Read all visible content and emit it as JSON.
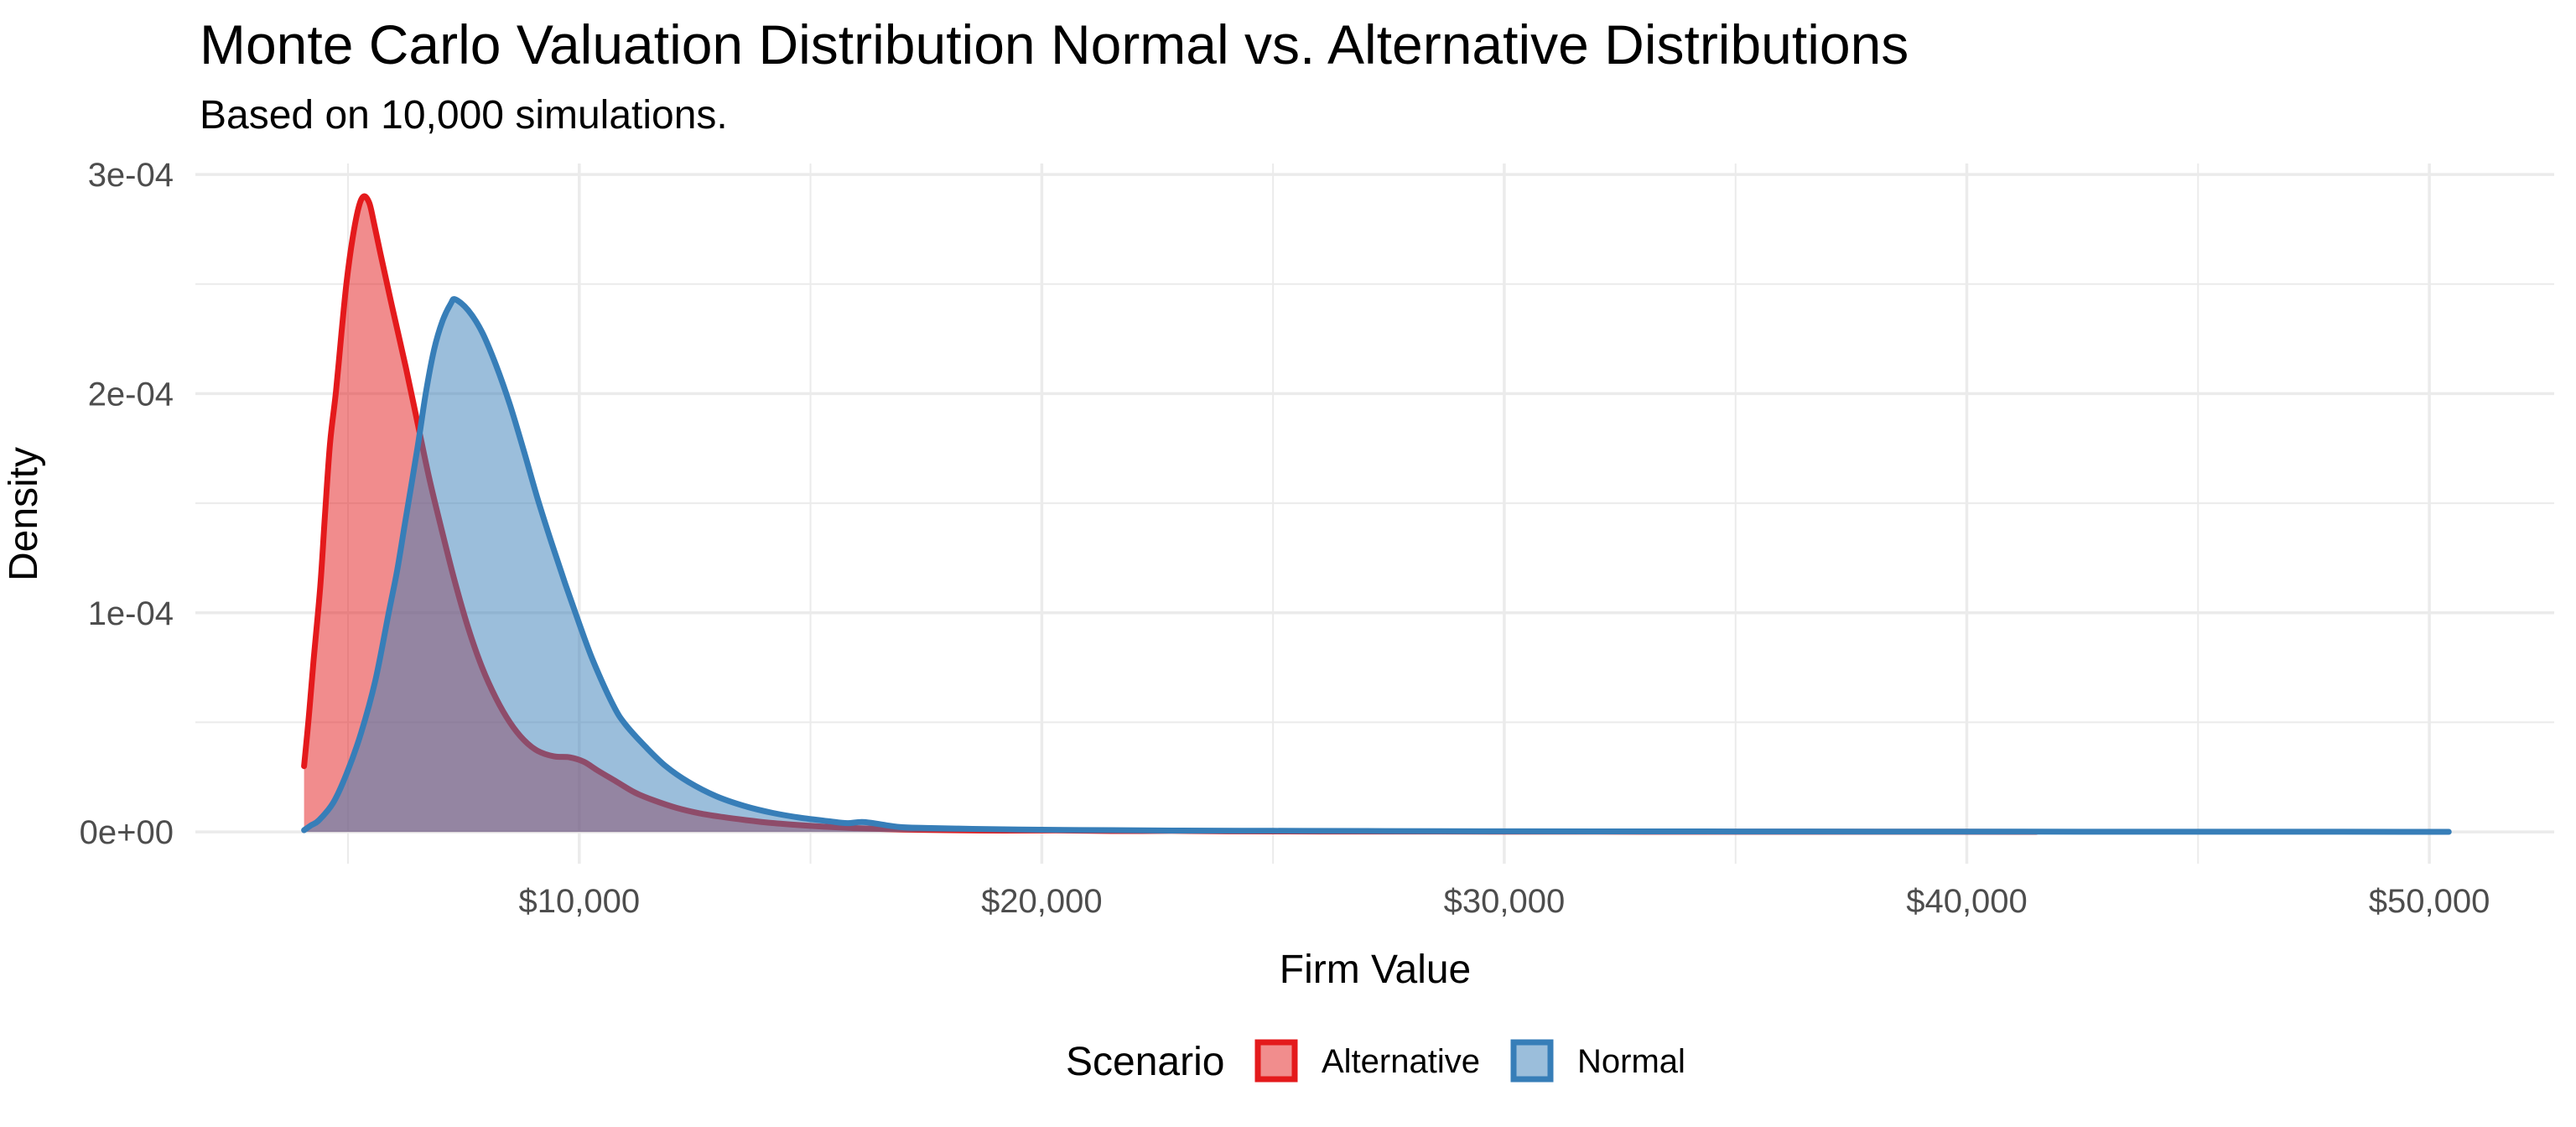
{
  "chart_data": {
    "type": "area",
    "subtype": "overlaid-density",
    "title": "Monte Carlo Valuation Distribution Normal vs. Alternative Distributions",
    "subtitle": "Based on 10,000 simulations.",
    "xlabel": "Firm Value",
    "ylabel": "Density",
    "x_domain": [
      1700,
      52700
    ],
    "y_domain": [
      -1.45e-05,
      0.000305
    ],
    "grid": true,
    "legend_position": "bottom",
    "x_ticks": [
      {
        "value": 10000,
        "label": "$10,000"
      },
      {
        "value": 20000,
        "label": "$20,000"
      },
      {
        "value": 30000,
        "label": "$30,000"
      },
      {
        "value": 40000,
        "label": "$40,000"
      },
      {
        "value": 50000,
        "label": "$50,000"
      }
    ],
    "x_minor_ticks": [
      5000,
      15000,
      25000,
      35000,
      45000
    ],
    "y_ticks": [
      {
        "value": 0.0,
        "label": "0e+00"
      },
      {
        "value": 0.0001,
        "label": "1e-04"
      },
      {
        "value": 0.0002,
        "label": "2e-04"
      },
      {
        "value": 0.0003,
        "label": "3e-04"
      }
    ],
    "y_minor_ticks": [
      5e-05,
      0.00015,
      0.00025
    ],
    "series": [
      {
        "name": "Alternative",
        "stroke": "#E41A1C",
        "fill": "#E41A1C",
        "fill_opacity": 0.5,
        "peak": {
          "value": 5340,
          "density": 0.00029
        },
        "points": [
          [
            4050,
            3e-05
          ],
          [
            4150,
            5.2e-05
          ],
          [
            4250,
            7.7e-05
          ],
          [
            4400,
            0.000112
          ],
          [
            4500,
            0.000144
          ],
          [
            4610,
            0.000177
          ],
          [
            4740,
            0.000201
          ],
          [
            4860,
            0.000228
          ],
          [
            4970,
            0.000251
          ],
          [
            5100,
            0.000271
          ],
          [
            5230,
            0.000285
          ],
          [
            5340,
            0.00029
          ],
          [
            5460,
            0.000287
          ],
          [
            5560,
            0.000278
          ],
          [
            5700,
            0.000264
          ],
          [
            5950,
            0.00024
          ],
          [
            6250,
            0.000212
          ],
          [
            6500,
            0.000187
          ],
          [
            6750,
            0.000162
          ],
          [
            7000,
            0.00014
          ],
          [
            7300,
            0.000115
          ],
          [
            7600,
            9.3e-05
          ],
          [
            7900,
            7.5e-05
          ],
          [
            8200,
            6.1e-05
          ],
          [
            8500,
            5e-05
          ],
          [
            8800,
            4.2e-05
          ],
          [
            9100,
            3.7e-05
          ],
          [
            9450,
            3.45e-05
          ],
          [
            9800,
            3.4e-05
          ],
          [
            10100,
            3.2e-05
          ],
          [
            10400,
            2.8e-05
          ],
          [
            10800,
            2.3e-05
          ],
          [
            11200,
            1.8e-05
          ],
          [
            11600,
            1.45e-05
          ],
          [
            12100,
            1.1e-05
          ],
          [
            12600,
            8.5e-06
          ],
          [
            13100,
            6.8e-06
          ],
          [
            13600,
            5.4e-06
          ],
          [
            14100,
            4.2e-06
          ],
          [
            14700,
            3.2e-06
          ],
          [
            15300,
            2.4e-06
          ],
          [
            16000,
            1.7e-06
          ],
          [
            17000,
            1.1e-06
          ],
          [
            18000,
            8e-07
          ],
          [
            19200,
            6e-07
          ],
          [
            20300,
            7e-07
          ],
          [
            21500,
            4e-07
          ],
          [
            22800,
            5e-07
          ],
          [
            24000,
            3e-07
          ],
          [
            26000,
            2e-07
          ],
          [
            28000,
            2e-07
          ],
          [
            30000,
            1.5e-07
          ],
          [
            33000,
            1e-07
          ],
          [
            36000,
            1e-07
          ],
          [
            39000,
            8e-08
          ],
          [
            41500,
            5e-08
          ]
        ]
      },
      {
        "name": "Normal",
        "stroke": "#377EB8",
        "fill": "#377EB8",
        "fill_opacity": 0.5,
        "peak": {
          "value": 7320,
          "density": 0.000243
        },
        "points": [
          [
            4050,
            8e-07
          ],
          [
            4200,
            3e-06
          ],
          [
            4370,
            5.3e-06
          ],
          [
            4680,
            1.33e-05
          ],
          [
            4970,
            2.66e-05
          ],
          [
            5280,
            4.5e-05
          ],
          [
            5590,
            6.9e-05
          ],
          [
            5880,
            0.0001
          ],
          [
            6060,
            0.000119
          ],
          [
            6225,
            0.00014
          ],
          [
            6500,
            0.000175
          ],
          [
            6680,
            0.0002
          ],
          [
            6860,
            0.00022
          ],
          [
            7040,
            0.000233
          ],
          [
            7220,
            0.000241
          ],
          [
            7320,
            0.000243
          ],
          [
            7600,
            0.000238
          ],
          [
            7900,
            0.000228
          ],
          [
            8200,
            0.000213
          ],
          [
            8500,
            0.000195
          ],
          [
            8800,
            0.000174
          ],
          [
            9100,
            0.000152
          ],
          [
            9400,
            0.000132
          ],
          [
            9700,
            0.000113
          ],
          [
            10000,
            9.5e-05
          ],
          [
            10300,
            7.8e-05
          ],
          [
            10730,
            5.8e-05
          ],
          [
            11000,
            4.9e-05
          ],
          [
            11450,
            3.85e-05
          ],
          [
            11870,
            3e-05
          ],
          [
            12360,
            2.28e-05
          ],
          [
            12960,
            1.63e-05
          ],
          [
            13575,
            1.18e-05
          ],
          [
            14174,
            8.7e-06
          ],
          [
            14773,
            6.5e-06
          ],
          [
            15390,
            4.9e-06
          ],
          [
            15800,
            4e-06
          ],
          [
            16170,
            4.5e-06
          ],
          [
            16900,
            2.3e-06
          ],
          [
            17500,
            1.8e-06
          ],
          [
            18500,
            1.4e-06
          ],
          [
            19500,
            1.1e-06
          ],
          [
            20500,
            9e-07
          ],
          [
            21500,
            8e-07
          ],
          [
            23000,
            6e-07
          ],
          [
            25000,
            5e-07
          ],
          [
            27000,
            4e-07
          ],
          [
            29500,
            3e-07
          ],
          [
            32000,
            2.5e-07
          ],
          [
            35000,
            2e-07
          ],
          [
            38000,
            1.5e-07
          ],
          [
            41000,
            1.2e-07
          ],
          [
            44000,
            1e-07
          ],
          [
            47000,
            8e-08
          ],
          [
            49500,
            6e-08
          ],
          [
            50420,
            5e-08
          ]
        ]
      }
    ]
  },
  "legend": {
    "title": "Scenario",
    "items": [
      {
        "label": "Alternative",
        "fill": "#F18D8D",
        "stroke": "#E41A1C"
      },
      {
        "label": "Normal",
        "fill": "#9BBEDB",
        "stroke": "#377EB8"
      }
    ]
  },
  "colors": {
    "background": "#FFFFFF",
    "grid": "#EBEBEB",
    "tick_text": "#4D4D4D",
    "text": "#000000"
  }
}
